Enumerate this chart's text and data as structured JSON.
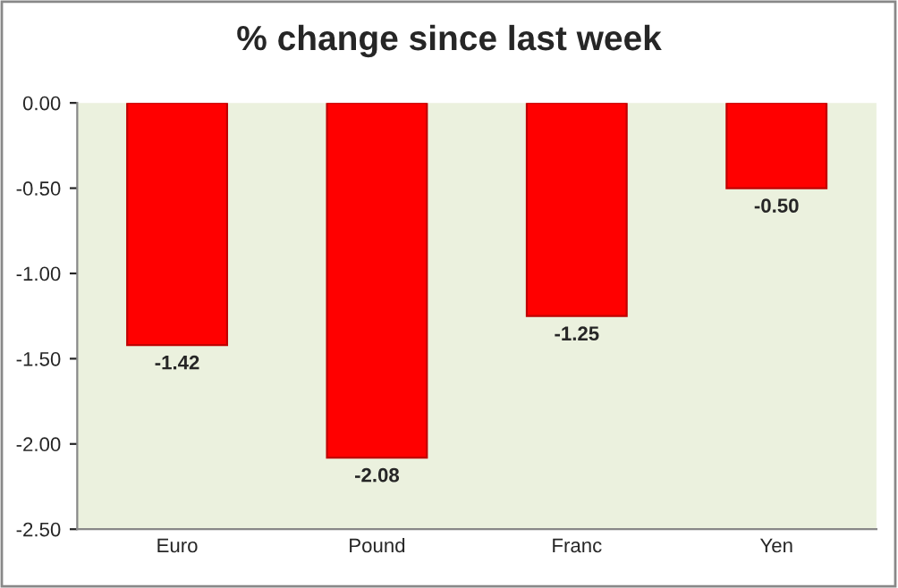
{
  "chart_data": {
    "type": "bar",
    "title": "% change since last week",
    "categories": [
      "Euro",
      "Pound",
      "Franc",
      "Yen"
    ],
    "values": [
      -1.42,
      -2.08,
      -1.25,
      -0.5
    ],
    "value_labels": [
      "-1.42",
      "-2.08",
      "-1.25",
      "-0.50"
    ],
    "color": "#ff0000",
    "ylim": [
      -2.5,
      0
    ],
    "yticks": [
      {
        "value": 0,
        "label": "0.00"
      },
      {
        "value": -0.5,
        "label": "-0.50"
      },
      {
        "value": -1,
        "label": "-1.00"
      },
      {
        "value": -1.5,
        "label": "-1.50"
      },
      {
        "value": -2,
        "label": "-2.00"
      },
      {
        "value": -2.5,
        "label": "-2.50"
      }
    ],
    "grid": false,
    "legend": false
  }
}
